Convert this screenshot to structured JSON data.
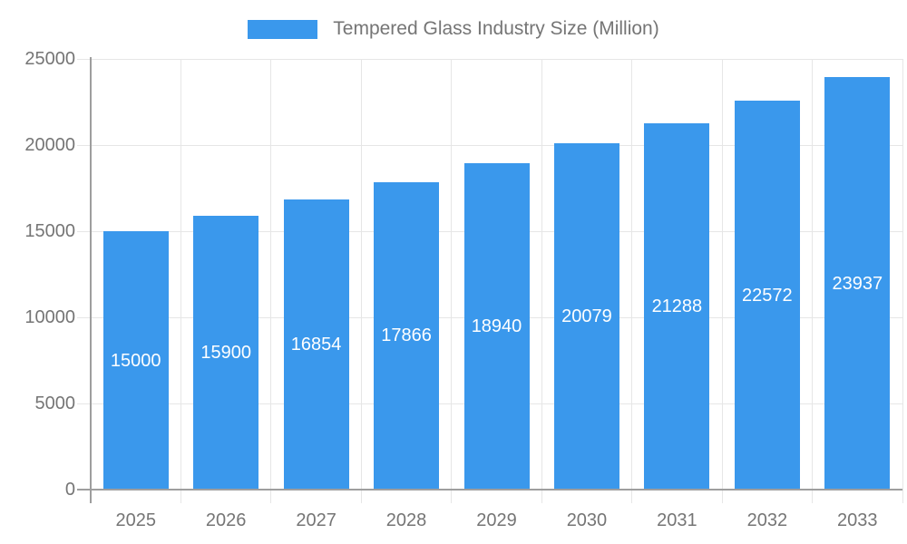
{
  "chart_data": {
    "type": "bar",
    "legend": "Tempered Glass Industry Size (Million)",
    "categories": [
      "2025",
      "2026",
      "2027",
      "2028",
      "2029",
      "2030",
      "2031",
      "2032",
      "2033"
    ],
    "values": [
      15000,
      15900,
      16854,
      17866,
      18940,
      20079,
      21288,
      22572,
      23937
    ],
    "series": [
      {
        "name": "Tempered Glass Industry Size (Million)",
        "values": [
          15000,
          15900,
          16854,
          17866,
          18940,
          20079,
          21288,
          22572,
          23937
        ]
      }
    ],
    "title": "",
    "xlabel": "",
    "ylabel": "",
    "ylim": [
      0,
      25000
    ],
    "yticks": [
      0,
      5000,
      10000,
      15000,
      20000,
      25000
    ],
    "grid": "on",
    "legend_position": "top-center",
    "value_labels": "inside-bar-centered",
    "colors": {
      "bar": "#3a98ec",
      "gridline": "#e6e6e6",
      "axis": "#9e9e9e",
      "tick_text": "#757575",
      "legend_text": "#757575",
      "value_label_text": "#ffffff",
      "background": "#ffffff"
    }
  }
}
